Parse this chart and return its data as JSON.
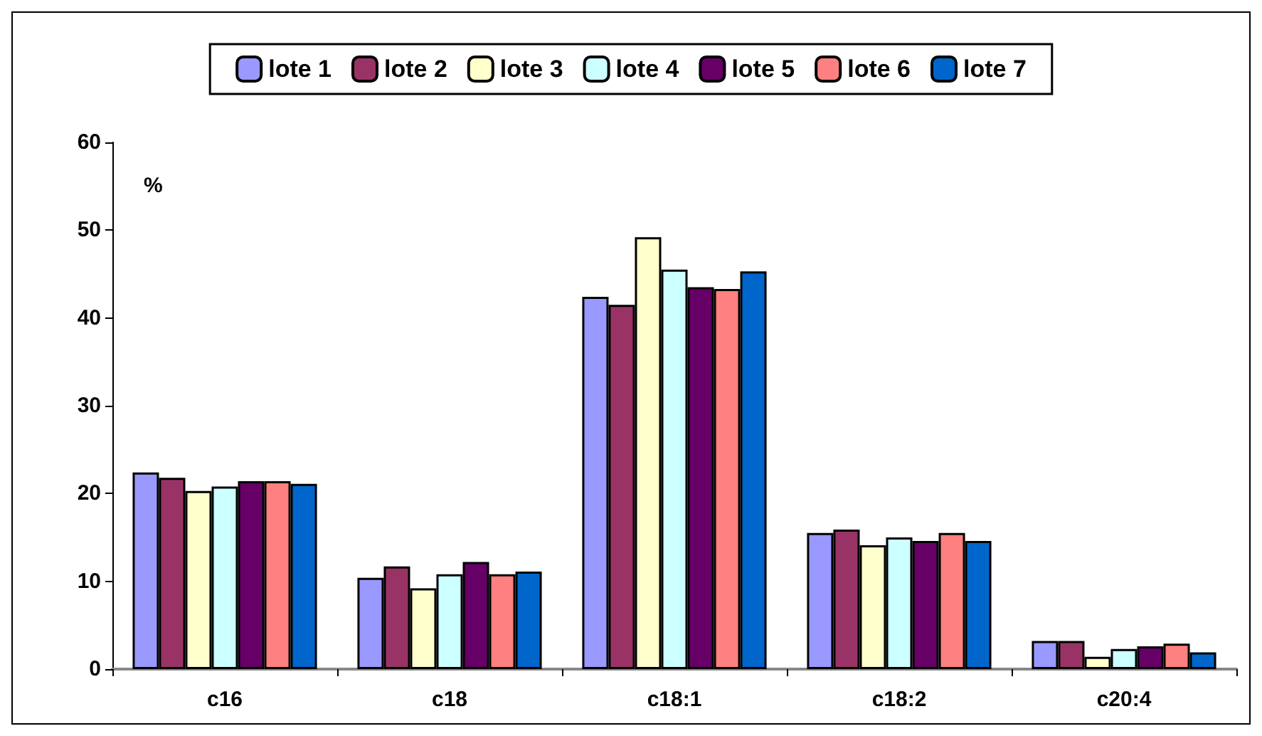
{
  "chart_data": {
    "type": "bar",
    "ylabel": "%",
    "categories": [
      "c16",
      "c18",
      "c18:1",
      "c18:2",
      "c20:4"
    ],
    "series": [
      {
        "name": "lote 1",
        "color": "#9999ff",
        "values": [
          22.4,
          10.4,
          42.4,
          15.5,
          3.2
        ]
      },
      {
        "name": "lote 2",
        "color": "#993366",
        "values": [
          21.8,
          11.7,
          41.5,
          15.9,
          3.2
        ]
      },
      {
        "name": "lote 3",
        "color": "#ffffcc",
        "values": [
          20.3,
          9.2,
          49.2,
          14.1,
          1.4
        ]
      },
      {
        "name": "lote 4",
        "color": "#ccffff",
        "values": [
          20.8,
          10.8,
          45.5,
          15.0,
          2.3
        ]
      },
      {
        "name": "lote 5",
        "color": "#660066",
        "values": [
          21.4,
          12.2,
          43.5,
          14.6,
          2.6
        ]
      },
      {
        "name": "lote 6",
        "color": "#ff8080",
        "values": [
          21.4,
          10.8,
          43.3,
          15.5,
          2.9
        ]
      },
      {
        "name": "lote 7",
        "color": "#0066cc",
        "values": [
          21.1,
          11.1,
          45.3,
          14.6,
          1.9
        ]
      }
    ],
    "ylim": [
      0,
      60
    ],
    "yticks": [
      0,
      10,
      20,
      30,
      40,
      50,
      60
    ],
    "grid": false,
    "legend": "top"
  }
}
